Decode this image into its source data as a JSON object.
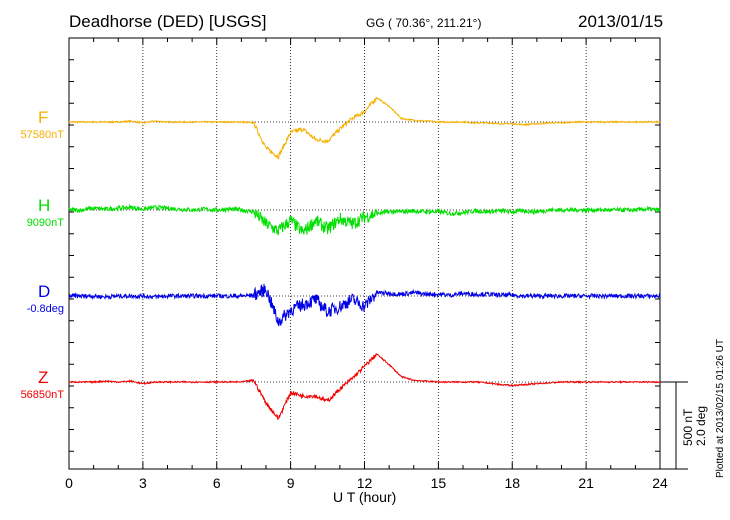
{
  "chart_data": {
    "type": "line",
    "title": "Deadhorse (DED)  [USGS]",
    "coords": "GG ( 70.36°, 211.21°)",
    "date": "2013/01/15",
    "xlabel": "U T (hour)",
    "xlim": [
      0,
      24
    ],
    "xticks": [
      "0",
      "3",
      "6",
      "9",
      "12",
      "15",
      "18",
      "21",
      "24"
    ],
    "scale_bar": {
      "nT": "500 nT",
      "deg": "2.0 deg"
    },
    "plotted_at": "Plotted at 2013/02/15 01:26 UT",
    "x_hours": [
      0,
      0.5,
      1,
      1.5,
      2,
      2.5,
      3,
      3.5,
      4,
      4.5,
      5,
      5.5,
      6,
      6.5,
      7,
      7.5,
      8,
      8.5,
      9,
      9.5,
      10,
      10.5,
      11,
      11.5,
      12,
      12.5,
      13,
      13.5,
      14,
      14.5,
      15,
      15.5,
      16,
      16.5,
      17,
      17.5,
      18,
      18.5,
      19,
      19.5,
      20,
      20.5,
      21,
      21.5,
      22,
      22.5,
      23,
      23.5,
      24
    ],
    "series": [
      {
        "name": "F",
        "baseline": "57580nT",
        "color": "#f5b000",
        "noise": 8,
        "values": [
          0,
          0,
          0,
          0,
          0,
          5,
          -5,
          5,
          0,
          0,
          0,
          0,
          0,
          0,
          0,
          -5,
          -150,
          -200,
          -60,
          -40,
          -100,
          -110,
          -40,
          20,
          60,
          140,
          90,
          20,
          10,
          5,
          0,
          0,
          0,
          -5,
          -5,
          -10,
          -10,
          -15,
          -10,
          -5,
          -5,
          0,
          0,
          0,
          0,
          0,
          0,
          0,
          0
        ]
      },
      {
        "name": "H",
        "baseline": "9090nT",
        "color": "#00e000",
        "noise": 25,
        "values": [
          0,
          0,
          10,
          5,
          10,
          15,
          5,
          15,
          10,
          5,
          0,
          5,
          0,
          5,
          0,
          -10,
          -80,
          -120,
          -60,
          -130,
          -60,
          -110,
          -50,
          -80,
          -40,
          -20,
          -10,
          -10,
          -5,
          -10,
          -10,
          -20,
          -15,
          -5,
          -10,
          -5,
          -10,
          -5,
          -10,
          0,
          0,
          0,
          0,
          0,
          0,
          0,
          0,
          5,
          0
        ]
      },
      {
        "name": "D",
        "baseline": "-0.8deg",
        "color": "#0000e6",
        "noise": 25,
        "values": [
          0,
          0,
          0,
          -5,
          0,
          0,
          0,
          -5,
          0,
          0,
          0,
          0,
          0,
          0,
          0,
          5,
          40,
          -150,
          -80,
          -50,
          -20,
          -90,
          -60,
          -20,
          -60,
          20,
          15,
          10,
          20,
          10,
          10,
          5,
          15,
          10,
          10,
          5,
          5,
          0,
          0,
          0,
          0,
          0,
          0,
          0,
          0,
          0,
          0,
          0,
          0
        ]
      },
      {
        "name": "Z",
        "baseline": "56850nT",
        "color": "#f00000",
        "noise": 8,
        "values": [
          0,
          0,
          0,
          5,
          0,
          5,
          -10,
          0,
          0,
          0,
          0,
          0,
          0,
          0,
          0,
          10,
          -120,
          -210,
          -60,
          -80,
          -80,
          -110,
          -40,
          20,
          90,
          160,
          100,
          30,
          10,
          5,
          0,
          0,
          0,
          0,
          -5,
          -15,
          -20,
          -15,
          -10,
          -5,
          0,
          0,
          0,
          0,
          0,
          0,
          0,
          0,
          0
        ]
      }
    ]
  }
}
